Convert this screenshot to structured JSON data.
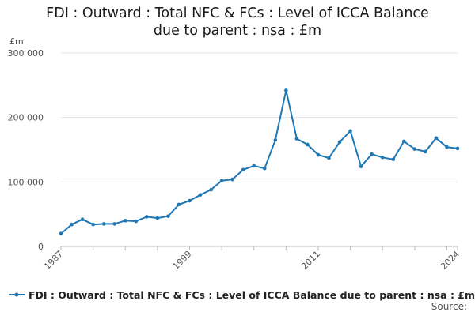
{
  "chart_data": {
    "type": "line",
    "title_lines": [
      "FDI : Outward : Total NFC & FCs : Level of ICCA Balance",
      "due to parent : nsa : £m"
    ],
    "ylabel": "£m",
    "ylim": [
      0,
      300000
    ],
    "yticks": [
      0,
      100000,
      200000,
      300000
    ],
    "ytick_labels": [
      "0",
      "100 000",
      "200 000",
      "300 000"
    ],
    "xlim": [
      1987,
      2024
    ],
    "xticks": [
      1987,
      1999,
      2011,
      2024
    ],
    "xtick_labels": [
      "1987",
      "1999",
      "2011",
      "2024"
    ],
    "grid": true,
    "legend_position": "bottom",
    "series": [
      {
        "name": "FDI : Outward : Total NFC & FCs : Level of ICCA Balance due to parent : nsa : £m",
        "color": "#1f78b4",
        "x": [
          1987,
          1988,
          1989,
          1990,
          1991,
          1992,
          1993,
          1994,
          1995,
          1996,
          1997,
          1998,
          1999,
          2000,
          2001,
          2002,
          2003,
          2004,
          2005,
          2006,
          2007,
          2008,
          2009,
          2010,
          2011,
          2012,
          2013,
          2014,
          2015,
          2016,
          2017,
          2018,
          2019,
          2020,
          2021,
          2022,
          2023,
          2024
        ],
        "values": [
          20000,
          34000,
          42000,
          34000,
          35000,
          35000,
          40000,
          39000,
          46000,
          44000,
          47000,
          65000,
          71000,
          80000,
          88000,
          102000,
          104000,
          119000,
          125000,
          121000,
          165000,
          242000,
          167000,
          158000,
          142000,
          137000,
          162000,
          179000,
          124000,
          143000,
          138000,
          135000,
          163000,
          151000,
          147000,
          168000,
          154000,
          152000
        ]
      }
    ]
  },
  "source_label": "Source:"
}
